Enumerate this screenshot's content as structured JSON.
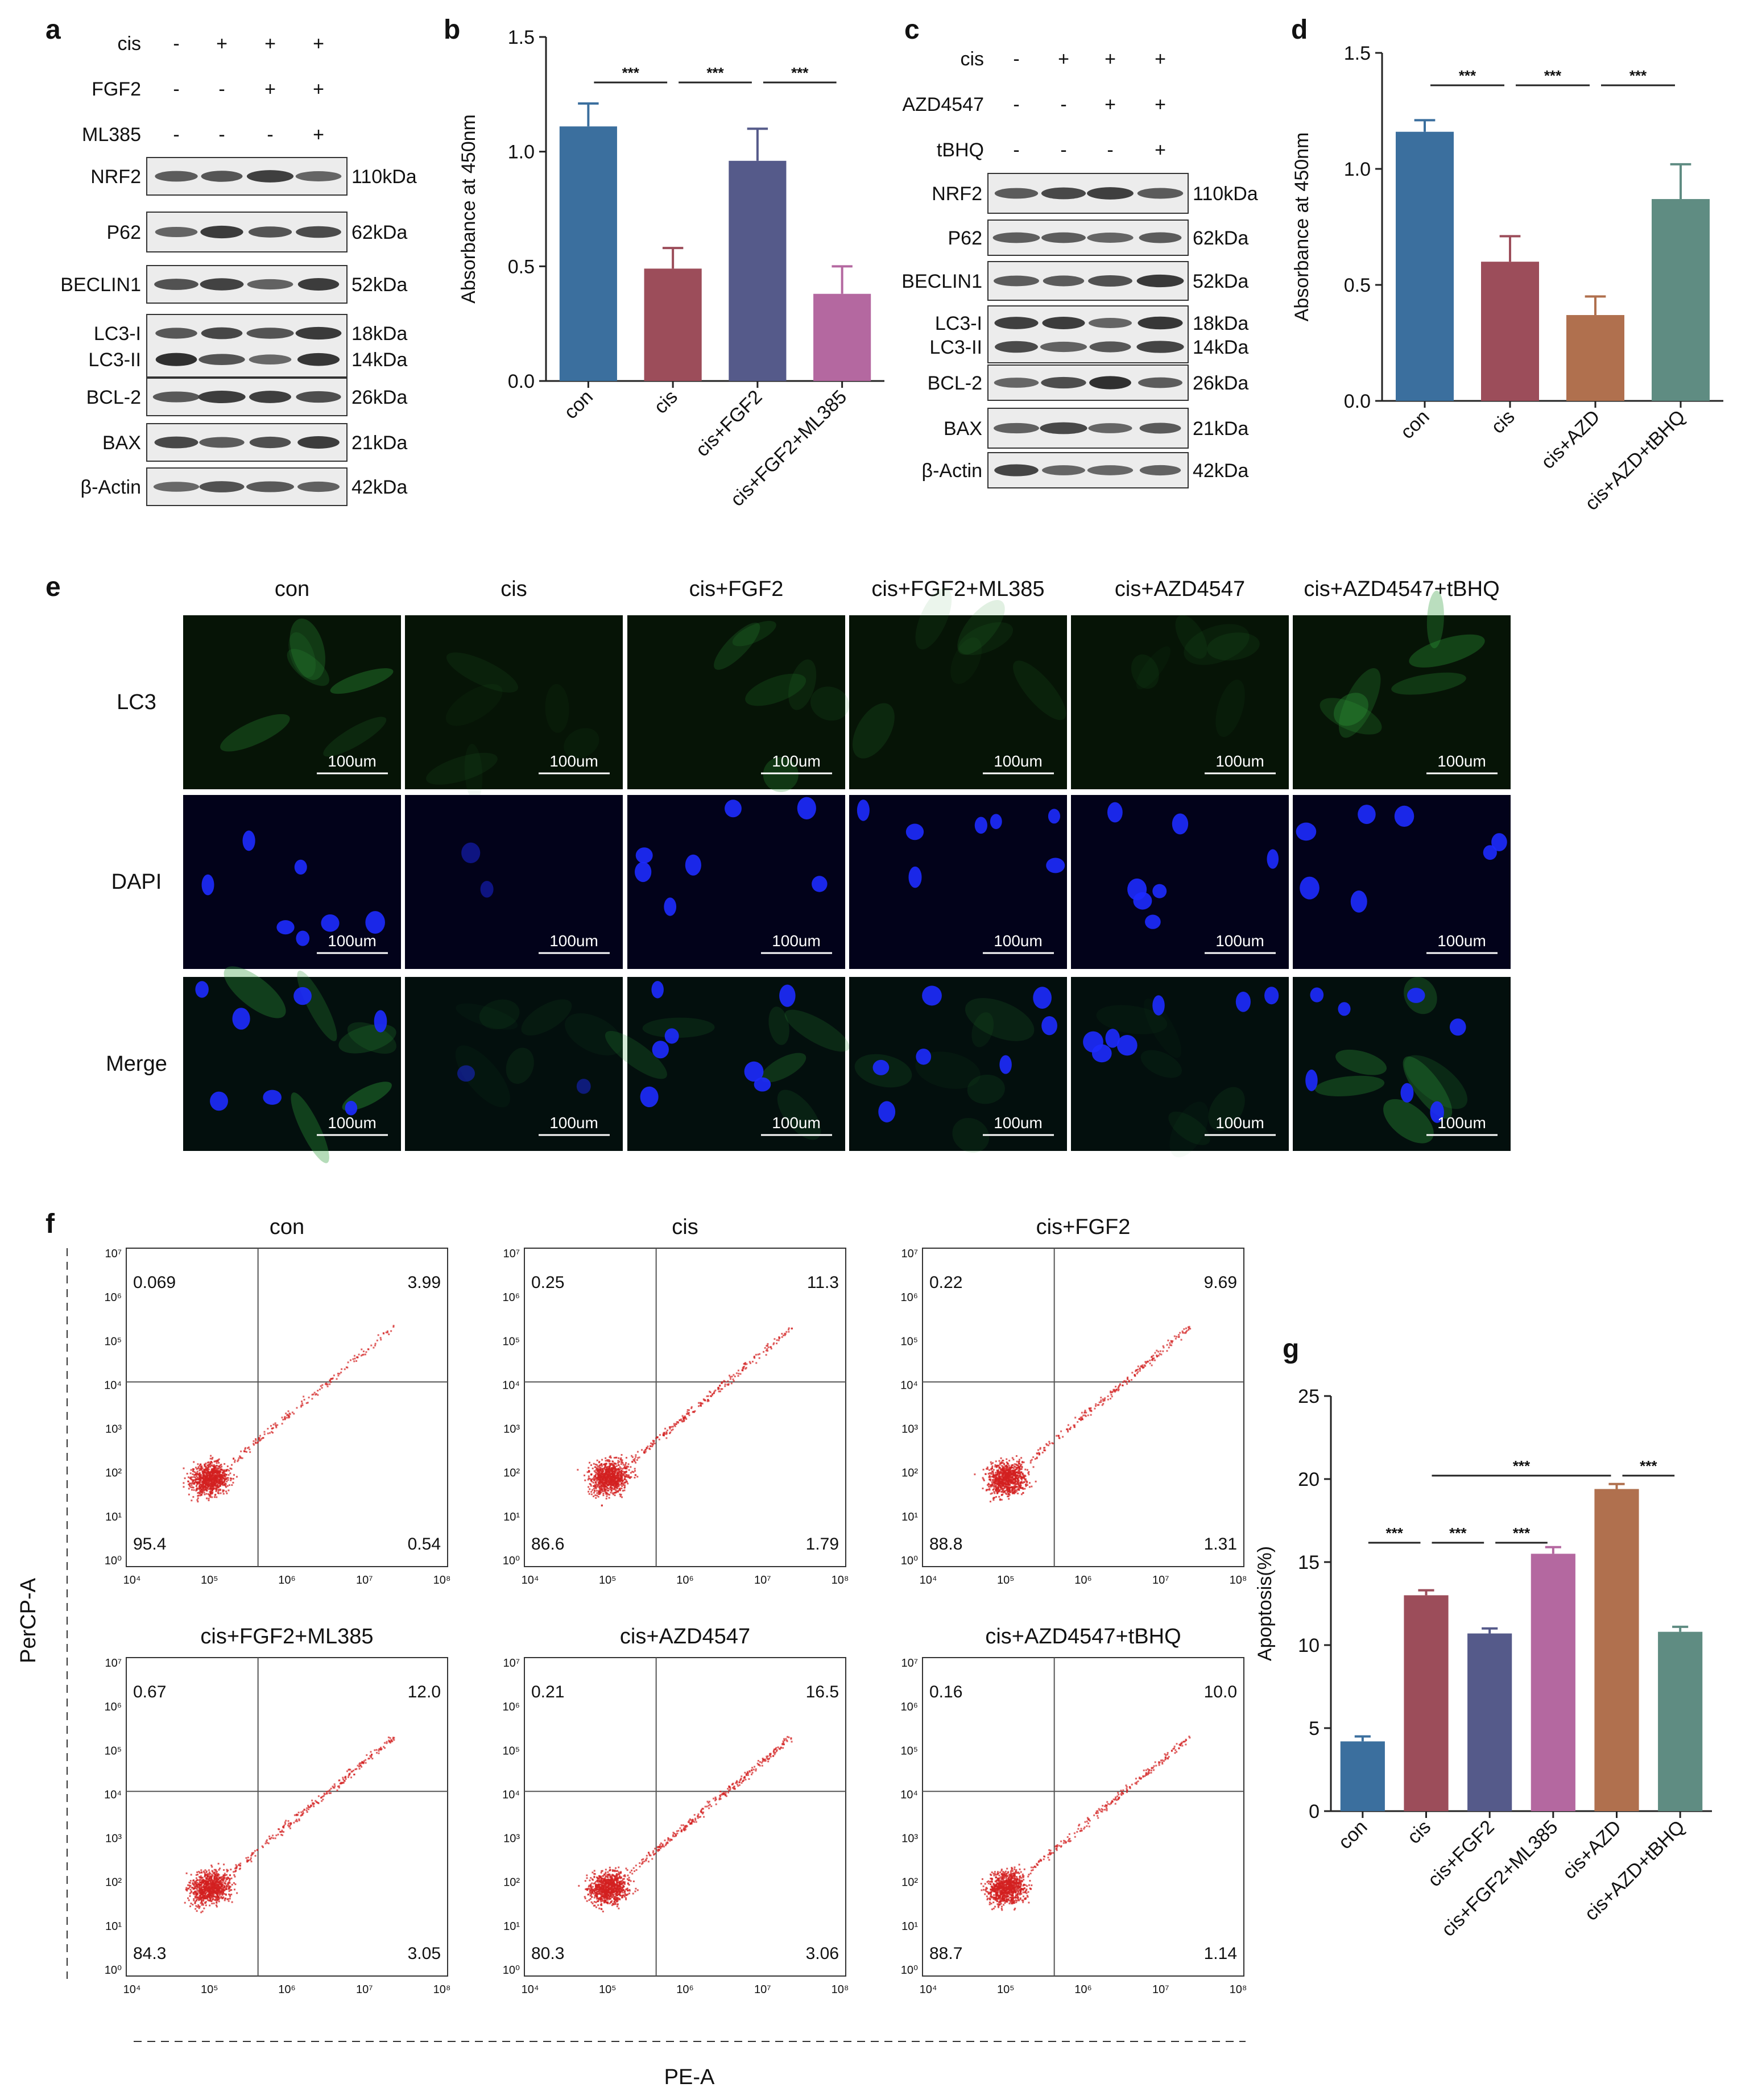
{
  "figure": {
    "panel_letters": [
      "a",
      "b",
      "c",
      "d",
      "e",
      "f",
      "g"
    ]
  },
  "panel_a": {
    "treatments": [
      {
        "name": "cis",
        "marks": [
          "-",
          "+",
          "+",
          "+"
        ]
      },
      {
        "name": "FGF2",
        "marks": [
          "-",
          "-",
          "+",
          "+"
        ]
      },
      {
        "name": "ML385",
        "marks": [
          "-",
          "-",
          "-",
          "+"
        ]
      }
    ],
    "blots": [
      {
        "protein": "NRF2",
        "size": "110kDa"
      },
      {
        "protein": "P62",
        "size": "62kDa"
      },
      {
        "protein": "BECLIN1",
        "size": "52kDa"
      },
      {
        "protein": "LC3-I",
        "size": "18kDa"
      },
      {
        "protein": "LC3-II",
        "size": "14kDa"
      },
      {
        "protein": "BCL-2",
        "size": "26kDa"
      },
      {
        "protein": "BAX",
        "size": "21kDa"
      },
      {
        "protein": "β-Actin",
        "size": "42kDa"
      }
    ]
  },
  "panel_c": {
    "treatments": [
      {
        "name": "cis",
        "marks": [
          "-",
          "+",
          "+",
          "+"
        ]
      },
      {
        "name": "AZD4547",
        "marks": [
          "-",
          "-",
          "+",
          "+"
        ]
      },
      {
        "name": "tBHQ",
        "marks": [
          "-",
          "-",
          "-",
          "+"
        ]
      }
    ],
    "blots": [
      {
        "protein": "NRF2",
        "size": "110kDa"
      },
      {
        "protein": "P62",
        "size": "62kDa"
      },
      {
        "protein": "BECLIN1",
        "size": "52kDa"
      },
      {
        "protein": "LC3-I",
        "size": "18kDa"
      },
      {
        "protein": "LC3-II",
        "size": "14kDa"
      },
      {
        "protein": "BCL-2",
        "size": "26kDa"
      },
      {
        "protein": "BAX",
        "size": "21kDa"
      },
      {
        "protein": "β-Actin",
        "size": "42kDa"
      }
    ]
  },
  "panel_e": {
    "columns": [
      "con",
      "cis",
      "cis+FGF2",
      "cis+FGF2+ML385",
      "cis+AZD4547",
      "cis+AZD4547+tBHQ"
    ],
    "rows": [
      "LC3",
      "DAPI",
      "Merge"
    ],
    "scale_bar": "100um"
  },
  "panel_f": {
    "xlabel": "PE-A",
    "ylabel": "PerCP-A",
    "x_ticks": [
      "10⁴",
      "10⁵",
      "10⁶",
      "10⁷",
      "10⁸"
    ],
    "y_ticks": [
      "10⁰",
      "10¹",
      "10²",
      "10³",
      "10⁴",
      "10⁵",
      "10⁶",
      "10⁷"
    ],
    "plots": [
      {
        "title": "con",
        "ul": "0.069",
        "ur": "3.99",
        "ll": "95.4",
        "lr": "0.54"
      },
      {
        "title": "cis",
        "ul": "0.25",
        "ur": "11.3",
        "ll": "86.6",
        "lr": "1.79"
      },
      {
        "title": "cis+FGF2",
        "ul": "0.22",
        "ur": "9.69",
        "ll": "88.8",
        "lr": "1.31"
      },
      {
        "title": "cis+FGF2+ML385",
        "ul": "0.67",
        "ur": "12.0",
        "ll": "84.3",
        "lr": "3.05"
      },
      {
        "title": "cis+AZD4547",
        "ul": "0.21",
        "ur": "16.5",
        "ll": "80.3",
        "lr": "3.06"
      },
      {
        "title": "cis+AZD4547+tBHQ",
        "ul": "0.16",
        "ur": "10.0",
        "ll": "88.7",
        "lr": "1.14"
      }
    ]
  },
  "chart_data": [
    {
      "panel": "b",
      "type": "bar",
      "ylabel": "Absorbance at 450nm",
      "ylim": [
        0,
        1.5
      ],
      "yticks": [
        "0.0",
        "0.5",
        "1.0",
        "1.5"
      ],
      "categories": [
        "con",
        "cis",
        "cis+FGF2",
        "cis+FGF2+ML385"
      ],
      "values": [
        1.11,
        0.49,
        0.96,
        0.38
      ],
      "errors": [
        0.1,
        0.09,
        0.14,
        0.12
      ],
      "colors": [
        "#3b6f9e",
        "#9c4d5a",
        "#555a8a",
        "#b468a0"
      ],
      "significance": [
        {
          "from": 0,
          "to": 1,
          "label": "***"
        },
        {
          "from": 1,
          "to": 2,
          "label": "***"
        },
        {
          "from": 2,
          "to": 3,
          "label": "***"
        }
      ]
    },
    {
      "panel": "d",
      "type": "bar",
      "ylabel": "Absorbance at 450nm",
      "ylim": [
        0,
        1.5
      ],
      "yticks": [
        "0.0",
        "0.5",
        "1.0",
        "1.5"
      ],
      "categories": [
        "con",
        "cis",
        "cis+AZD",
        "cis+AZD+tBHQ"
      ],
      "values": [
        1.16,
        0.6,
        0.37,
        0.87
      ],
      "errors": [
        0.05,
        0.11,
        0.08,
        0.15
      ],
      "colors": [
        "#3b6f9e",
        "#9c4d5a",
        "#b0704e",
        "#5f8c82"
      ],
      "significance": [
        {
          "from": 0,
          "to": 1,
          "label": "***"
        },
        {
          "from": 1,
          "to": 2,
          "label": "***"
        },
        {
          "from": 2,
          "to": 3,
          "label": "***"
        }
      ]
    },
    {
      "panel": "g",
      "type": "bar",
      "ylabel": "Apoptosis(%)",
      "ylim": [
        0,
        25
      ],
      "yticks": [
        "0",
        "5",
        "10",
        "15",
        "20",
        "25"
      ],
      "categories": [
        "con",
        "cis",
        "cis+FGF2",
        "cis+FGF2+ML385",
        "cis+AZD",
        "cis+AZD+tBHQ"
      ],
      "values": [
        4.2,
        13.0,
        10.7,
        15.5,
        19.4,
        10.8
      ],
      "errors": [
        0.3,
        0.3,
        0.3,
        0.4,
        0.3,
        0.3
      ],
      "colors": [
        "#3b6f9e",
        "#9c4d5a",
        "#555a8a",
        "#b468a0",
        "#b0704e",
        "#5f8c82"
      ],
      "significance": [
        {
          "from": 0,
          "to": 1,
          "label": "***"
        },
        {
          "from": 1,
          "to": 2,
          "label": "***"
        },
        {
          "from": 2,
          "to": 3,
          "label": "***"
        },
        {
          "from": 1,
          "to": 4,
          "label": "***"
        },
        {
          "from": 4,
          "to": 5,
          "label": "***"
        }
      ]
    }
  ]
}
